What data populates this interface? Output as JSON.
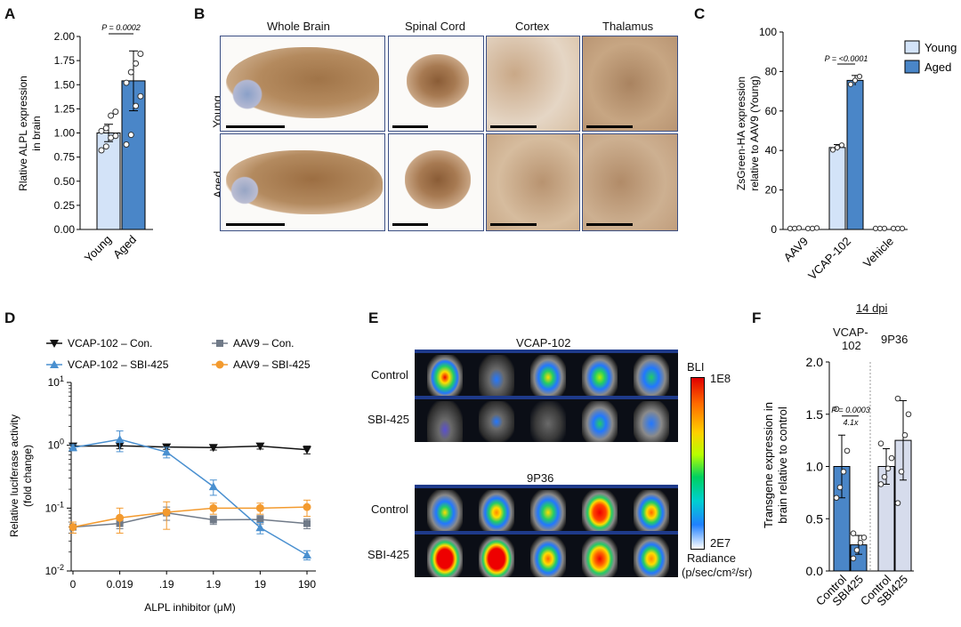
{
  "panels": {
    "A": {
      "letter": "A"
    },
    "B": {
      "letter": "B",
      "columns": [
        "Whole Brain",
        "Spinal Cord",
        "Cortex",
        "Thalamus"
      ],
      "rows": [
        "Young",
        "Aged"
      ]
    },
    "C": {
      "letter": "C"
    },
    "D": {
      "letter": "D"
    },
    "E": {
      "letter": "E",
      "group1": "VCAP-102",
      "group2": "9P36",
      "row_labels": [
        "Control",
        "SBI-425",
        "Control",
        "SBI-425"
      ],
      "colorbar": {
        "title": "BLI",
        "max": "1E8",
        "min": "2E7",
        "unit_line1": "Radiance",
        "unit_line2": "(p/sec/cm²/sr)"
      }
    },
    "F": {
      "letter": "F",
      "header": "14 dpi",
      "group1_line1": "VCAP-",
      "group1_line2": "102",
      "group2": "9P36"
    }
  },
  "chart_data": [
    {
      "id": "A",
      "type": "bar",
      "categories": [
        "Young",
        "Aged"
      ],
      "values": [
        1.0,
        1.54
      ],
      "errors": [
        0.09,
        0.31
      ],
      "points": [
        [
          0.82,
          0.86,
          0.95,
          0.97,
          1.02,
          1.05,
          1.18,
          1.22
        ],
        [
          0.88,
          0.98,
          1.28,
          1.38,
          1.52,
          1.63,
          1.72,
          1.82
        ]
      ],
      "colors": [
        "#d3e3f8",
        "#4a86c8"
      ],
      "ylabel_line1": "Rlative ALPL expression",
      "ylabel_line2": "in brain",
      "ylim": [
        0,
        2.0
      ],
      "yticks": [
        "0.00",
        "0.25",
        "0.50",
        "0.75",
        "1.00",
        "1.25",
        "1.50",
        "1.75",
        "2.00"
      ],
      "annotation": "P = 0.0002"
    },
    {
      "id": "C",
      "type": "bar",
      "categories": [
        "AAV9",
        "VCAP-102",
        "Vehicle"
      ],
      "series": [
        {
          "name": "Young",
          "color": "#d3e3f8",
          "values": [
            0.5,
            41.5,
            0
          ],
          "errors": [
            0.3,
            1.5,
            0
          ]
        },
        {
          "name": "Aged",
          "color": "#4a86c8",
          "values": [
            0.5,
            75.5,
            0
          ],
          "errors": [
            0.3,
            2.5,
            0
          ]
        }
      ],
      "ylabel_line1": "ZsGreen-HA expression",
      "ylabel_line2": "relative to AAV9 (Young)",
      "ylim": [
        0,
        100
      ],
      "yticks": [
        "0",
        "20",
        "40",
        "60",
        "80",
        "100"
      ],
      "annotation": "P = <0.0001"
    },
    {
      "id": "D",
      "type": "line",
      "x": [
        "0",
        "0.019",
        ".19",
        "1.9",
        "19",
        "190"
      ],
      "xlabel": "ALPL inhibitor (μM)",
      "ylabel_line1": "Relative luciferase activity",
      "ylabel_line2": "(fold change)",
      "yscale": "log",
      "ylim": [
        0.01,
        10
      ],
      "series": [
        {
          "name": "VCAP-102 – Con.",
          "color": "#111111",
          "marker": "triangle-down",
          "values": [
            0.97,
            0.98,
            0.94,
            0.92,
            0.97,
            0.85
          ],
          "errors": [
            0.1,
            0.1,
            0.08,
            0.08,
            0.1,
            0.12
          ]
        },
        {
          "name": "AAV9 – Con.",
          "color": "#707a88",
          "marker": "square",
          "values": [
            0.05,
            0.057,
            0.084,
            0.065,
            0.066,
            0.057
          ],
          "errors": [
            0.01,
            0.01,
            0.02,
            0.01,
            0.01,
            0.01
          ]
        },
        {
          "name": "VCAP-102 – SBI-425",
          "color": "#4a90d0",
          "marker": "triangle-up",
          "values": [
            0.92,
            1.24,
            0.78,
            0.22,
            0.049,
            0.018
          ],
          "errors": [
            0.1,
            0.45,
            0.15,
            0.06,
            0.01,
            0.003
          ]
        },
        {
          "name": "AAV9 – SBI-425",
          "color": "#f39a2e",
          "marker": "circle",
          "values": [
            0.05,
            0.07,
            0.086,
            0.1,
            0.1,
            0.104
          ],
          "errors": [
            0.01,
            0.03,
            0.04,
            0.02,
            0.02,
            0.03
          ]
        }
      ]
    },
    {
      "id": "F",
      "type": "bar",
      "categories": [
        "Control",
        "SBI425",
        "Control",
        "SBI425"
      ],
      "values": [
        1.0,
        0.25,
        1.0,
        1.25
      ],
      "errors": [
        0.3,
        0.09,
        0.17,
        0.38
      ],
      "points": [
        [
          0.7,
          0.8,
          0.95,
          1.15,
          1.55
        ],
        [
          0.12,
          0.2,
          0.27,
          0.32,
          0.36
        ],
        [
          0.83,
          0.9,
          0.98,
          1.08,
          1.22
        ],
        [
          0.65,
          0.95,
          1.3,
          1.5,
          1.65
        ]
      ],
      "colors": [
        "#4a86c8",
        "#4a86c8",
        "#d6dcec",
        "#d6dcec"
      ],
      "ylabel_line1": "Transgene expression in",
      "ylabel_line2": "brain  relative to control",
      "ylim": [
        0,
        2.0
      ],
      "yticks": [
        "0.0",
        "0.5",
        "1.0",
        "1.5",
        "2.0"
      ],
      "annotation": "P = 0.0003",
      "annotation2": "4.1x"
    }
  ]
}
